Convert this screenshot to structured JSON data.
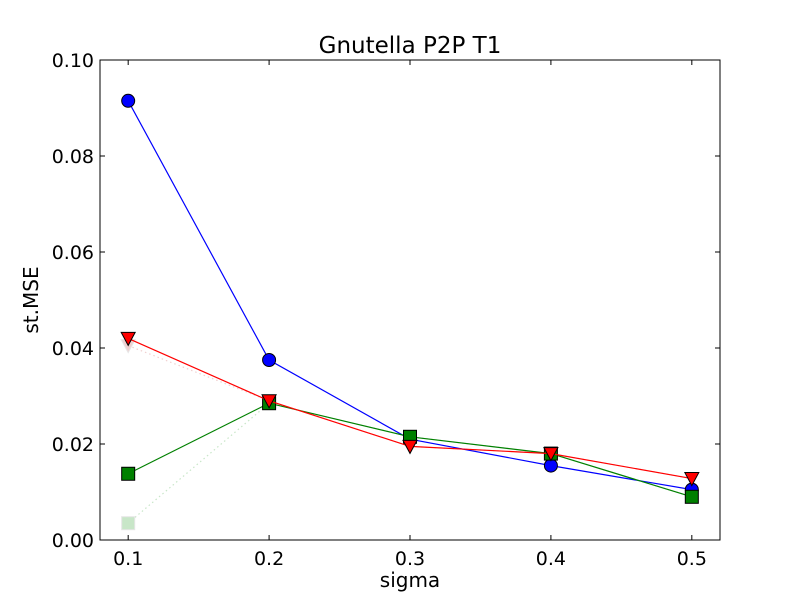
{
  "chart_data": {
    "type": "line",
    "title": "Gnutella P2P T1",
    "xlabel": "sigma",
    "ylabel": "st.MSE",
    "xlim": [
      0.08,
      0.52
    ],
    "ylim": [
      0.0,
      0.1
    ],
    "x_ticks": [
      0.1,
      0.2,
      0.3,
      0.4,
      0.5
    ],
    "x_tick_labels": [
      "0.1",
      "0.2",
      "0.3",
      "0.4",
      "0.5"
    ],
    "y_ticks": [
      0.0,
      0.02,
      0.04,
      0.06,
      0.08,
      0.1
    ],
    "y_tick_labels": [
      "0.00",
      "0.02",
      "0.04",
      "0.06",
      "0.08",
      "0.10"
    ],
    "grid": false,
    "legend": "none",
    "x": [
      0.1,
      0.2,
      0.3,
      0.4,
      0.5
    ],
    "series": [
      {
        "values": [
          0.0915,
          0.0375,
          0.021,
          0.0155,
          0.0105
        ],
        "color": "#0000ff",
        "marker": "circle",
        "line": "solid"
      },
      {
        "values": [
          0.0138,
          0.0285,
          0.0215,
          0.018,
          0.009
        ],
        "color": "#008000",
        "marker": "square",
        "line": "solid"
      },
      {
        "values": [
          0.042,
          0.029,
          0.0195,
          0.018,
          0.0128
        ],
        "color": "#ff0000",
        "marker": "triangle-down",
        "line": "solid"
      },
      {
        "values": [
          0.0035,
          0.0285,
          0.0215,
          0.018,
          0.009
        ],
        "color": "#c8e6c8",
        "marker": "square",
        "line": "dotted"
      },
      {
        "values": [
          0.0405,
          0.029,
          0.0195,
          0.018,
          0.0128
        ],
        "color": "#f0d0d0",
        "marker": "triangle-down",
        "line": "dotted"
      }
    ]
  }
}
